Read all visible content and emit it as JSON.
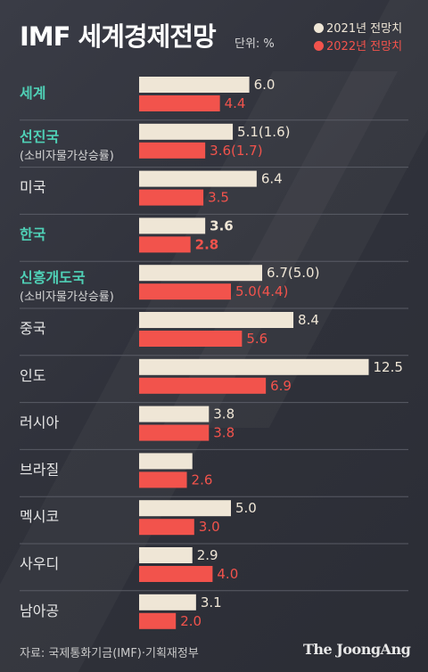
{
  "title": "IMF 세계경제전망",
  "unit_label": "단위: %",
  "legend": [
    {
      "label": "2021년 전망치",
      "color": "#efe6d6",
      "text_color": "#efe6d6"
    },
    {
      "label": "2022년 전망치",
      "color": "#f2534c",
      "text_color": "#f2534c"
    }
  ],
  "chart_data": {
    "type": "bar",
    "orientation": "horizontal",
    "categories": [
      {
        "label": "세계",
        "sublabel": "",
        "highlight": true
      },
      {
        "label": "선진국",
        "sublabel": "(소비자물가상승률)",
        "highlight": true
      },
      {
        "label": "미국",
        "sublabel": "",
        "highlight": false
      },
      {
        "label": "한국",
        "sublabel": "",
        "highlight": true
      },
      {
        "label": "신흥개도국",
        "sublabel": "(소비자물가상승률)",
        "highlight": true
      },
      {
        "label": "중국",
        "sublabel": "",
        "highlight": false
      },
      {
        "label": "인도",
        "sublabel": "",
        "highlight": false
      },
      {
        "label": "러시아",
        "sublabel": "",
        "highlight": false
      },
      {
        "label": "브라질",
        "sublabel": "",
        "highlight": false
      },
      {
        "label": "멕시코",
        "sublabel": "",
        "highlight": false
      },
      {
        "label": "사우디",
        "sublabel": "",
        "highlight": false
      },
      {
        "label": "남아공",
        "sublabel": "",
        "highlight": false
      }
    ],
    "series": [
      {
        "name": "2021년 전망치",
        "color": "#efe6d6",
        "values": [
          6.0,
          5.1,
          6.4,
          3.6,
          6.7,
          8.4,
          12.5,
          3.8,
          2.9,
          5.0,
          2.9,
          3.1
        ],
        "value_labels": [
          "6.0",
          "5.1(1.6)",
          "6.4",
          "3.6",
          "6.7(5.0)",
          "8.4",
          "12.5",
          "3.8",
          "",
          "5.0",
          "2.9",
          "3.1"
        ]
      },
      {
        "name": "2022년 전망치",
        "color": "#f2534c",
        "values": [
          4.4,
          3.6,
          3.5,
          2.8,
          5.0,
          5.6,
          6.9,
          3.8,
          2.6,
          3.0,
          4.0,
          2.0
        ],
        "value_labels": [
          "4.4",
          "3.6(1.7)",
          "3.5",
          "2.8",
          "5.0(4.4)",
          "5.6",
          "6.9",
          "3.8",
          "2.6",
          "3.0",
          "4.0",
          "2.0"
        ]
      }
    ],
    "emphasized_category": "한국",
    "category_label_color": "#e6e6e6",
    "highlight_label_color": "#4fd0b6",
    "grid": false,
    "legend_position": "top-right"
  },
  "source": "자료: 국제통화기금(IMF)·기획재정부",
  "logo": "The JoongAng"
}
